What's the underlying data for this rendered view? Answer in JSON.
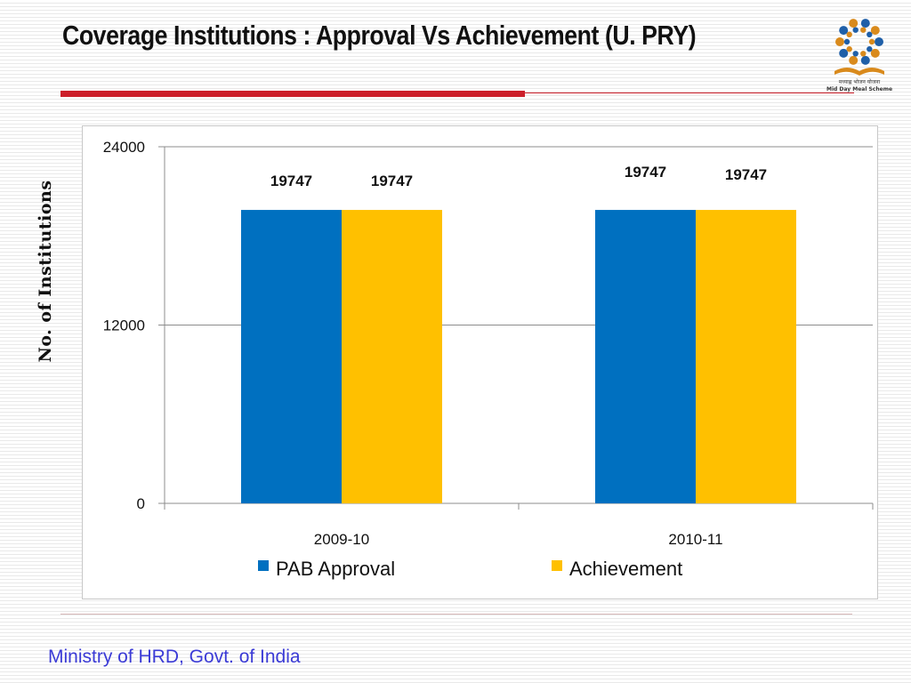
{
  "slide": {
    "title": "Coverage Institutions : Approval Vs Achievement (U. PRY)",
    "footer": "Ministry of HRD, Govt. of India",
    "accent_color": "#cc1f2a",
    "footer_color": "#3b3bd6"
  },
  "logo": {
    "icon": "mid-day-meal-logo",
    "text_hindi": "मध्याह्न भोजन योजना",
    "text_english": "Mid Day Meal Scheme"
  },
  "chart_data": {
    "type": "bar",
    "title": "",
    "xlabel": "",
    "ylabel": "No. of Institutions",
    "categories": [
      "2009-10",
      "2010-11"
    ],
    "yticks": [
      0,
      12000,
      24000
    ],
    "ylim": [
      0,
      24000
    ],
    "grid": true,
    "legend_position": "bottom",
    "series": [
      {
        "name": "PAB Approval",
        "values": [
          19747,
          19747
        ],
        "color": "#0070c0"
      },
      {
        "name": "Achievement",
        "values": [
          19747,
          19747
        ],
        "color": "#ffc000"
      }
    ]
  }
}
